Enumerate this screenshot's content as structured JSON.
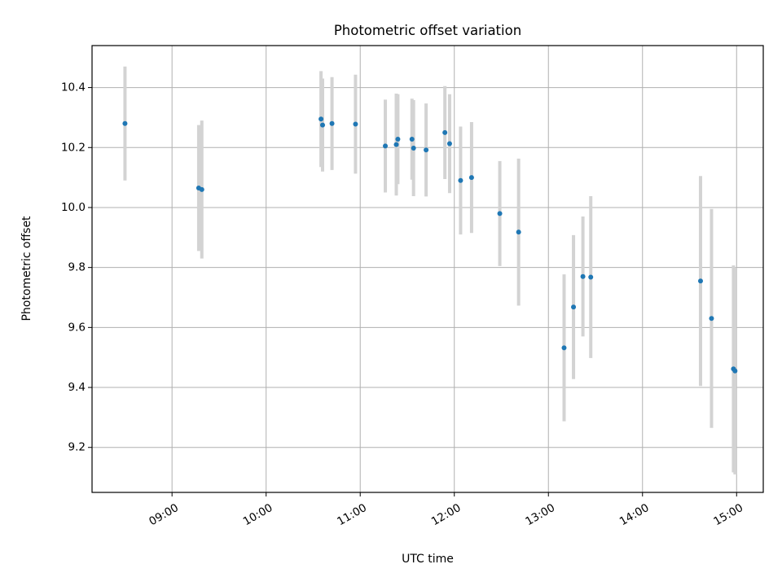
{
  "chart_data": {
    "type": "scatter",
    "title": "Photometric offset variation",
    "xlabel": "UTC time",
    "ylabel": "Photometric offset",
    "xlim": [
      "08:09",
      "15:17"
    ],
    "ylim": [
      9.05,
      10.54
    ],
    "x_ticks": [
      "09:00",
      "10:00",
      "11:00",
      "12:00",
      "13:00",
      "14:00",
      "15:00"
    ],
    "y_ticks": [
      "9.2",
      "9.4",
      "9.6",
      "9.8",
      "10.0",
      "10.2",
      "10.4"
    ],
    "grid": true,
    "marker_color": "#1f77b4",
    "errorbar_color": "#d3d3d3",
    "series": [
      {
        "points": [
          {
            "x": "08:30",
            "y": 10.28,
            "err": 0.19
          },
          {
            "x": "09:17",
            "y": 10.065,
            "err": 0.21
          },
          {
            "x": "09:19",
            "y": 10.06,
            "err": 0.23
          },
          {
            "x": "10:35",
            "y": 10.295,
            "err": 0.16
          },
          {
            "x": "10:36",
            "y": 10.275,
            "err": 0.155
          },
          {
            "x": "10:42",
            "y": 10.28,
            "err": 0.155
          },
          {
            "x": "10:57",
            "y": 10.278,
            "err": 0.165
          },
          {
            "x": "11:16",
            "y": 10.205,
            "err": 0.155
          },
          {
            "x": "11:23",
            "y": 10.21,
            "err": 0.17
          },
          {
            "x": "11:24",
            "y": 10.228,
            "err": 0.15
          },
          {
            "x": "11:33",
            "y": 10.228,
            "err": 0.135
          },
          {
            "x": "11:34",
            "y": 10.198,
            "err": 0.16
          },
          {
            "x": "11:42",
            "y": 10.192,
            "err": 0.155
          },
          {
            "x": "11:54",
            "y": 10.25,
            "err": 0.155
          },
          {
            "x": "11:57",
            "y": 10.213,
            "err": 0.165
          },
          {
            "x": "12:04",
            "y": 10.09,
            "err": 0.18
          },
          {
            "x": "12:11",
            "y": 10.1,
            "err": 0.185
          },
          {
            "x": "12:29",
            "y": 9.98,
            "err": 0.175
          },
          {
            "x": "12:41",
            "y": 9.918,
            "err": 0.245
          },
          {
            "x": "13:10",
            "y": 9.532,
            "err": 0.245
          },
          {
            "x": "13:16",
            "y": 9.668,
            "err": 0.24
          },
          {
            "x": "13:22",
            "y": 9.77,
            "err": 0.2
          },
          {
            "x": "13:27",
            "y": 9.768,
            "err": 0.27
          },
          {
            "x": "14:37",
            "y": 9.755,
            "err": 0.35
          },
          {
            "x": "14:44",
            "y": 9.63,
            "err": 0.365
          },
          {
            "x": "14:58",
            "y": 9.462,
            "err": 0.345
          },
          {
            "x": "14:59",
            "y": 9.455,
            "err": 0.345
          }
        ]
      }
    ]
  }
}
